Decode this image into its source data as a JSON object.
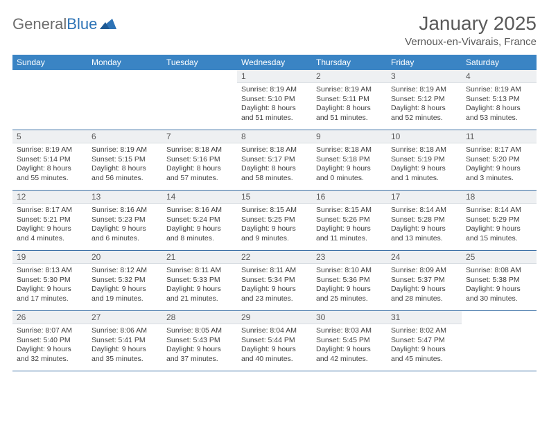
{
  "logo": {
    "word1": "General",
    "word2": "Blue"
  },
  "title": "January 2025",
  "location": "Vernoux-en-Vivarais, France",
  "colors": {
    "header_bg": "#3a84c4",
    "week_border": "#3a6fa5",
    "daynum_bg": "#eef0f2",
    "text": "#404040",
    "title_text": "#5a5a5a"
  },
  "weekdays": [
    "Sunday",
    "Monday",
    "Tuesday",
    "Wednesday",
    "Thursday",
    "Friday",
    "Saturday"
  ],
  "weeks": [
    [
      {
        "empty": true
      },
      {
        "empty": true
      },
      {
        "empty": true
      },
      {
        "day": "1",
        "sunrise": "8:19 AM",
        "sunset": "5:10 PM",
        "daylight_h": "8",
        "daylight_m": "51"
      },
      {
        "day": "2",
        "sunrise": "8:19 AM",
        "sunset": "5:11 PM",
        "daylight_h": "8",
        "daylight_m": "51"
      },
      {
        "day": "3",
        "sunrise": "8:19 AM",
        "sunset": "5:12 PM",
        "daylight_h": "8",
        "daylight_m": "52"
      },
      {
        "day": "4",
        "sunrise": "8:19 AM",
        "sunset": "5:13 PM",
        "daylight_h": "8",
        "daylight_m": "53"
      }
    ],
    [
      {
        "day": "5",
        "sunrise": "8:19 AM",
        "sunset": "5:14 PM",
        "daylight_h": "8",
        "daylight_m": "55"
      },
      {
        "day": "6",
        "sunrise": "8:19 AM",
        "sunset": "5:15 PM",
        "daylight_h": "8",
        "daylight_m": "56"
      },
      {
        "day": "7",
        "sunrise": "8:18 AM",
        "sunset": "5:16 PM",
        "daylight_h": "8",
        "daylight_m": "57"
      },
      {
        "day": "8",
        "sunrise": "8:18 AM",
        "sunset": "5:17 PM",
        "daylight_h": "8",
        "daylight_m": "58"
      },
      {
        "day": "9",
        "sunrise": "8:18 AM",
        "sunset": "5:18 PM",
        "daylight_h": "9",
        "daylight_m": "0"
      },
      {
        "day": "10",
        "sunrise": "8:18 AM",
        "sunset": "5:19 PM",
        "daylight_h": "9",
        "daylight_m": "1"
      },
      {
        "day": "11",
        "sunrise": "8:17 AM",
        "sunset": "5:20 PM",
        "daylight_h": "9",
        "daylight_m": "3"
      }
    ],
    [
      {
        "day": "12",
        "sunrise": "8:17 AM",
        "sunset": "5:21 PM",
        "daylight_h": "9",
        "daylight_m": "4"
      },
      {
        "day": "13",
        "sunrise": "8:16 AM",
        "sunset": "5:23 PM",
        "daylight_h": "9",
        "daylight_m": "6"
      },
      {
        "day": "14",
        "sunrise": "8:16 AM",
        "sunset": "5:24 PM",
        "daylight_h": "9",
        "daylight_m": "8"
      },
      {
        "day": "15",
        "sunrise": "8:15 AM",
        "sunset": "5:25 PM",
        "daylight_h": "9",
        "daylight_m": "9"
      },
      {
        "day": "16",
        "sunrise": "8:15 AM",
        "sunset": "5:26 PM",
        "daylight_h": "9",
        "daylight_m": "11"
      },
      {
        "day": "17",
        "sunrise": "8:14 AM",
        "sunset": "5:28 PM",
        "daylight_h": "9",
        "daylight_m": "13"
      },
      {
        "day": "18",
        "sunrise": "8:14 AM",
        "sunset": "5:29 PM",
        "daylight_h": "9",
        "daylight_m": "15"
      }
    ],
    [
      {
        "day": "19",
        "sunrise": "8:13 AM",
        "sunset": "5:30 PM",
        "daylight_h": "9",
        "daylight_m": "17"
      },
      {
        "day": "20",
        "sunrise": "8:12 AM",
        "sunset": "5:32 PM",
        "daylight_h": "9",
        "daylight_m": "19"
      },
      {
        "day": "21",
        "sunrise": "8:11 AM",
        "sunset": "5:33 PM",
        "daylight_h": "9",
        "daylight_m": "21"
      },
      {
        "day": "22",
        "sunrise": "8:11 AM",
        "sunset": "5:34 PM",
        "daylight_h": "9",
        "daylight_m": "23"
      },
      {
        "day": "23",
        "sunrise": "8:10 AM",
        "sunset": "5:36 PM",
        "daylight_h": "9",
        "daylight_m": "25"
      },
      {
        "day": "24",
        "sunrise": "8:09 AM",
        "sunset": "5:37 PM",
        "daylight_h": "9",
        "daylight_m": "28"
      },
      {
        "day": "25",
        "sunrise": "8:08 AM",
        "sunset": "5:38 PM",
        "daylight_h": "9",
        "daylight_m": "30"
      }
    ],
    [
      {
        "day": "26",
        "sunrise": "8:07 AM",
        "sunset": "5:40 PM",
        "daylight_h": "9",
        "daylight_m": "32"
      },
      {
        "day": "27",
        "sunrise": "8:06 AM",
        "sunset": "5:41 PM",
        "daylight_h": "9",
        "daylight_m": "35"
      },
      {
        "day": "28",
        "sunrise": "8:05 AM",
        "sunset": "5:43 PM",
        "daylight_h": "9",
        "daylight_m": "37"
      },
      {
        "day": "29",
        "sunrise": "8:04 AM",
        "sunset": "5:44 PM",
        "daylight_h": "9",
        "daylight_m": "40"
      },
      {
        "day": "30",
        "sunrise": "8:03 AM",
        "sunset": "5:45 PM",
        "daylight_h": "9",
        "daylight_m": "42"
      },
      {
        "day": "31",
        "sunrise": "8:02 AM",
        "sunset": "5:47 PM",
        "daylight_h": "9",
        "daylight_m": "45"
      },
      {
        "empty": true
      }
    ]
  ],
  "labels": {
    "sunrise_prefix": "Sunrise: ",
    "sunset_prefix": "Sunset: ",
    "daylight_prefix": "Daylight: ",
    "hours_word": " hours",
    "and_word": "and ",
    "minutes_word": " minutes."
  }
}
